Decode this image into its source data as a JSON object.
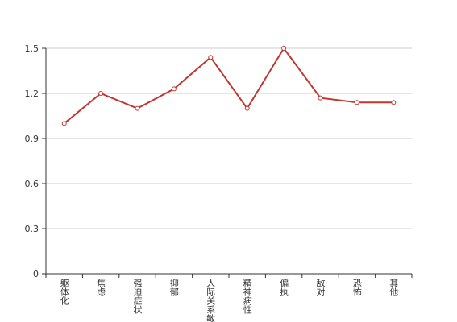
{
  "chart_data": {
    "type": "line",
    "categories": [
      "躯体化",
      "焦虑",
      "强迫症状",
      "抑郁",
      "人际关系敏感",
      "精神病性",
      "偏执",
      "敌对",
      "恐怖",
      "其他"
    ],
    "values": [
      1.0,
      1.2,
      1.1,
      1.23,
      1.44,
      1.1,
      1.5,
      1.17,
      1.14,
      1.14
    ],
    "color": "#c23531",
    "ylim": [
      0,
      1.5
    ],
    "yticks": [
      0,
      0.3,
      0.6,
      0.9,
      1.2,
      1.5
    ],
    "grid": true
  }
}
